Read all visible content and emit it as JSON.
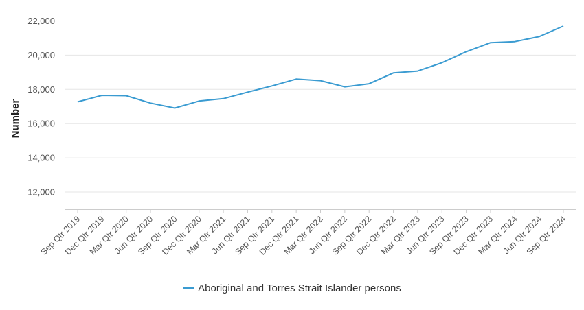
{
  "chart_data": {
    "type": "line",
    "xlabel": "",
    "ylabel": "Number",
    "ylim": [
      11000,
      22500
    ],
    "yticks": [
      12000,
      14000,
      16000,
      18000,
      20000,
      22000
    ],
    "ytick_labels": [
      "12,000",
      "14,000",
      "16,000",
      "18,000",
      "20,000",
      "22,000"
    ],
    "grid": true,
    "legend_position": "bottom",
    "categories": [
      "Sep Qtr 2019",
      "Dec Qtr 2019",
      "Mar Qtr 2020",
      "Jun Qtr 2020",
      "Sep Qtr 2020",
      "Dec Qtr 2020",
      "Mar Qtr 2021",
      "Jun Qtr 2021",
      "Sep Qtr 2021",
      "Dec Qtr 2021",
      "Mar Qtr 2022",
      "Jun Qtr 2022",
      "Sep Qtr 2022",
      "Dec Qtr 2022",
      "Mar Qtr 2023",
      "Jun Qtr 2023",
      "Sep Qtr 2023",
      "Dec Qtr 2023",
      "Mar Qtr 2024",
      "Jun Qtr 2024",
      "Sep Qtr 2024"
    ],
    "series": [
      {
        "name": "Aboriginal and Torres Strait Islander persons",
        "color": "#3a9bd1",
        "values": [
          17270,
          17650,
          17630,
          17200,
          16910,
          17320,
          17460,
          17840,
          18200,
          18600,
          18510,
          18150,
          18330,
          18960,
          19070,
          19560,
          20200,
          20730,
          20790,
          21080,
          21700
        ]
      }
    ]
  }
}
